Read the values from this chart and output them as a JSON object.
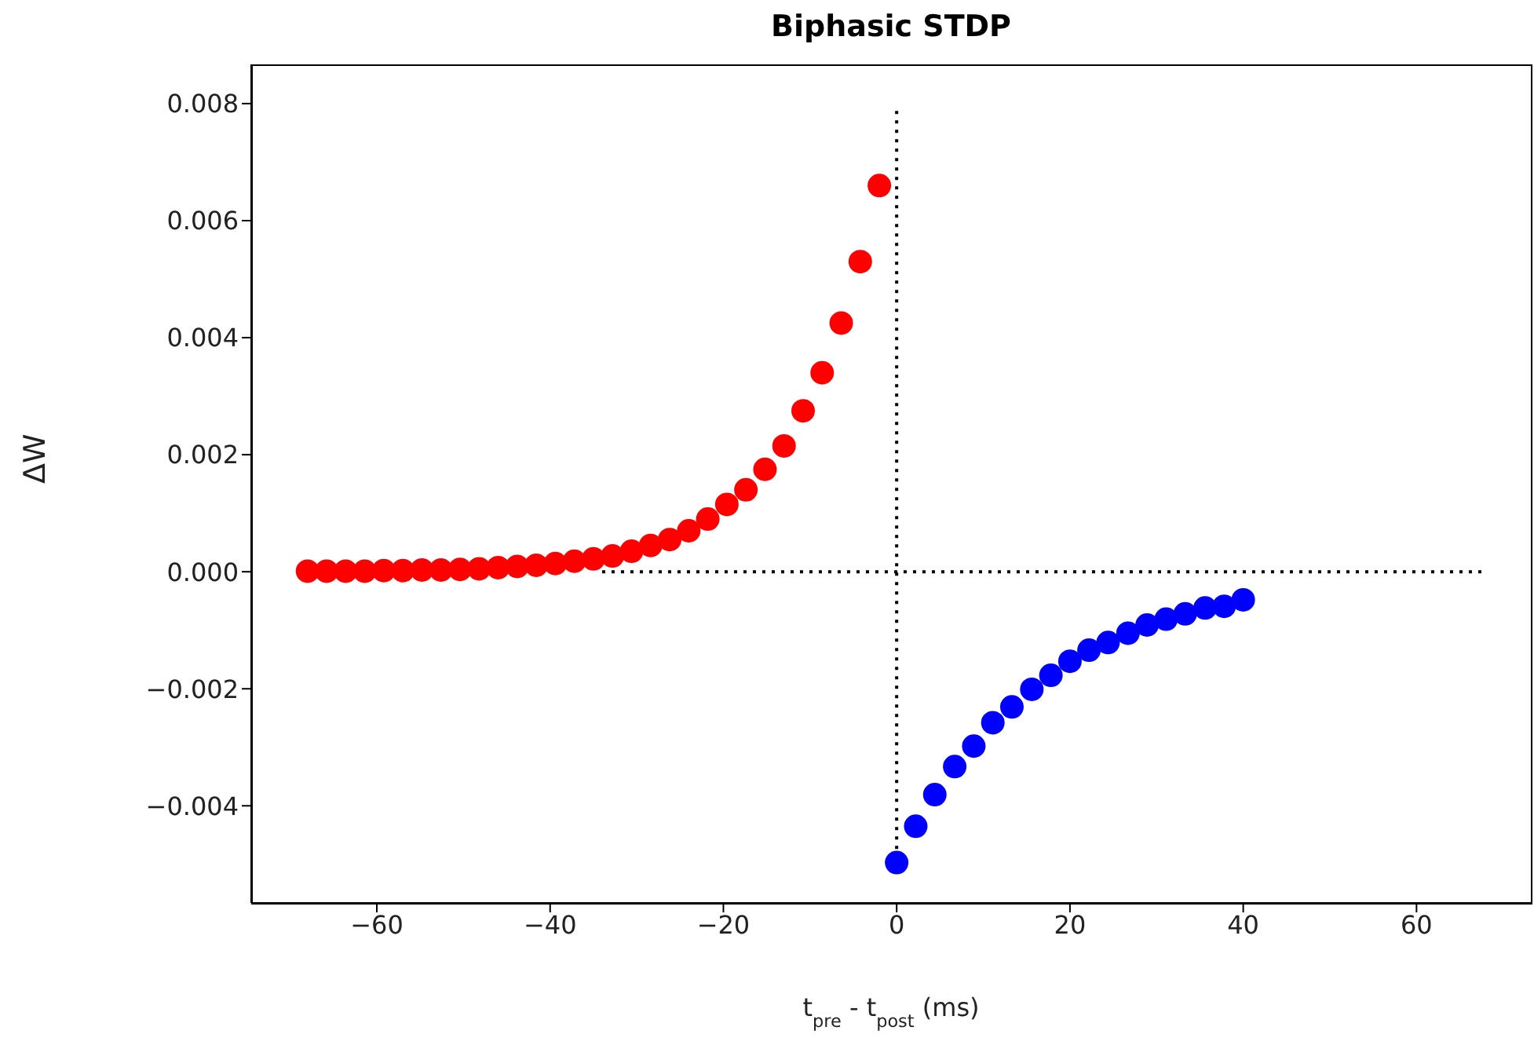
{
  "chart_data": {
    "type": "scatter",
    "title": "Biphasic STDP",
    "xlabel": "t$_{pre}$ - t$_{post}$ (ms)",
    "ylabel": "ΔW",
    "xlim": [
      -74.5,
      73.2
    ],
    "ylim": [
      -0.00566,
      0.00867
    ],
    "xticks": [
      {
        "value": -60,
        "label": "−60"
      },
      {
        "value": -40,
        "label": "−40"
      },
      {
        "value": -20,
        "label": "−20"
      },
      0,
      20,
      40,
      60
    ],
    "yticks": [
      {
        "value": -0.004,
        "label": "−0.004"
      },
      {
        "value": -0.002,
        "label": "−0.002"
      },
      {
        "value": 0,
        "label": "0.000"
      },
      {
        "value": 0.002,
        "label": "0.002"
      },
      {
        "value": 0.004,
        "label": "0.004"
      },
      {
        "value": 0.006,
        "label": "0.006"
      },
      {
        "value": 0.008,
        "label": "0.008"
      }
    ],
    "marker": "circle",
    "series": [
      {
        "type": "line",
        "color": "#000000",
        "marker": "none",
        "line_style": "dotted",
        "x": [
          -34,
          67.5
        ],
        "values": [
          0,
          0
        ]
      },
      {
        "type": "line",
        "color": "#000000",
        "marker": "none",
        "line_style": "dotted",
        "x": [
          0,
          0
        ],
        "values": [
          -0.0049,
          0.0079
        ]
      },
      {
        "color": "#ff0000",
        "x": [
          -2,
          -4.2,
          -6.4,
          -8.6,
          -10.8,
          -13,
          -15.2,
          -17.4,
          -19.6,
          -21.8,
          -24,
          -26.2,
          -28.4,
          -30.6,
          -32.8,
          -35,
          -37.2,
          -39.4,
          -41.6,
          -43.8,
          -46,
          -48.2,
          -50.4,
          -52.6,
          -54.8,
          -57,
          -59.2,
          -61.4,
          -63.6,
          -65.8,
          -68
        ],
        "values": [
          0.0066,
          0.0053,
          0.00425,
          0.0034,
          0.00275,
          0.00215,
          0.00175,
          0.0014,
          0.00115,
          0.0009,
          0.0007,
          0.00055,
          0.00045,
          0.00035,
          0.00027,
          0.00022,
          0.00018,
          0.00014,
          0.00011,
          9e-05,
          7e-05,
          5e-05,
          4e-05,
          3e-05,
          3e-05,
          2e-05,
          2e-05,
          1e-05,
          1e-05,
          1e-05,
          1e-05
        ]
      },
      {
        "color": "#0000ff",
        "x": [
          0,
          2.2,
          4.4,
          6.7,
          8.9,
          11.1,
          13.3,
          15.6,
          17.8,
          20,
          22.2,
          24.4,
          26.7,
          28.9,
          31.1,
          33.3,
          35.6,
          37.8,
          40
        ],
        "values": [
          -0.00497,
          -0.00435,
          -0.00381,
          -0.00333,
          -0.00298,
          -0.00258,
          -0.00231,
          -0.00201,
          -0.00177,
          -0.00153,
          -0.00134,
          -0.00121,
          -0.00105,
          -0.00091,
          -0.00081,
          -0.00072,
          -0.00062,
          -0.00059,
          -0.00048
        ]
      }
    ]
  }
}
